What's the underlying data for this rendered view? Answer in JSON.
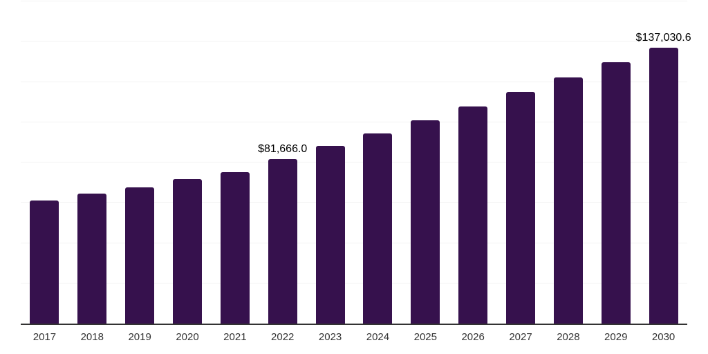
{
  "chart_data": {
    "type": "bar",
    "title": "",
    "xlabel": "",
    "ylabel": "",
    "categories": [
      "2017",
      "2018",
      "2019",
      "2020",
      "2021",
      "2022",
      "2023",
      "2024",
      "2025",
      "2026",
      "2027",
      "2028",
      "2029",
      "2030"
    ],
    "values": [
      61000,
      64400,
      67800,
      71600,
      75300,
      81666.0,
      88100,
      94400,
      101000,
      107900,
      115000,
      122100,
      129800,
      137030.6
    ],
    "point_labels": {
      "2022": "$81,666.0",
      "2030": "$137,030.6"
    },
    "ylim": [
      0,
      160000
    ],
    "gridline_step": 20000,
    "grid": "horizontal-only",
    "legend": "none",
    "bar_color": "#36114d",
    "axis_line_color": "#333333",
    "gridline_color": "#f2f2f2",
    "data_label_color": "#000000",
    "tick_label_color": "#333333",
    "background_color": "#ffffff"
  }
}
